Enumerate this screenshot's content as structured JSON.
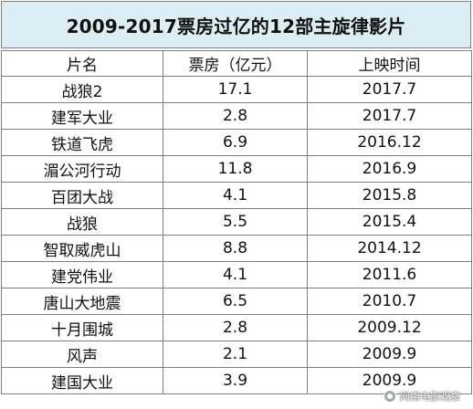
{
  "title": "2009-2017票房过亿的12部主旋律影片",
  "columns": [
    "片名",
    "票房（亿元）",
    "上映时间"
  ],
  "rows": [
    [
      "战狼2",
      "17.1",
      "2017.7"
    ],
    [
      "建军大业",
      "2.8",
      "2017.7"
    ],
    [
      "铁道飞虎",
      "6.9",
      "2016.12"
    ],
    [
      "湄公河行动",
      "11.8",
      "2016.9"
    ],
    [
      "百团大战",
      "4.1",
      "2015.8"
    ],
    [
      "战狼",
      "5.5",
      "2015.4"
    ],
    [
      "智取威虎山",
      "8.8",
      "2014.12"
    ],
    [
      "建党伟业",
      "4.1",
      "2011.6"
    ],
    [
      "唐山大地震",
      "6.5",
      "2010.7"
    ],
    [
      "十月围城",
      "2.8",
      "2009.12"
    ],
    [
      "风声",
      "2.1",
      "2009.9"
    ],
    [
      "建国大业",
      "3.9",
      "2009.9"
    ]
  ],
  "watermark": "网络电影观察",
  "colors": {
    "title_bg": "#daeef3",
    "grid_line": "#7f7f7f",
    "text": "#111111"
  }
}
